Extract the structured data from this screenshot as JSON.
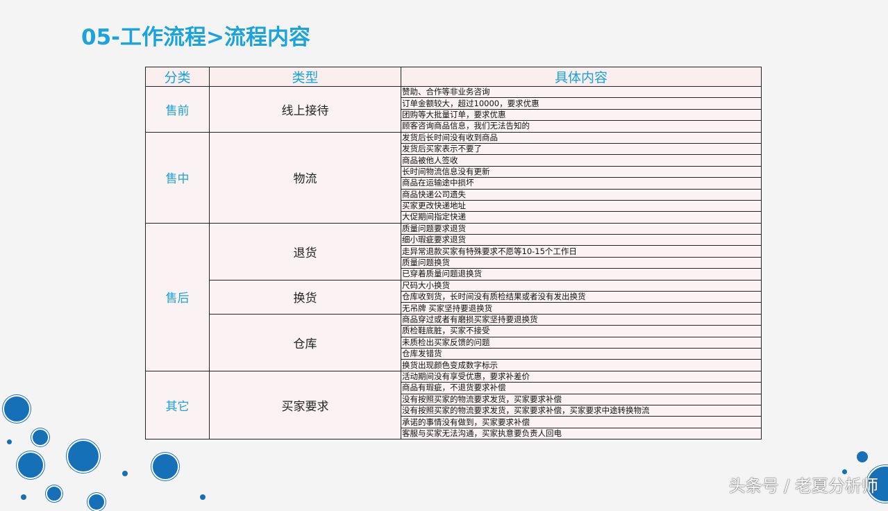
{
  "title": "05-工作流程>流程内容",
  "table": {
    "headers": [
      "分类",
      "类型",
      "具体内容"
    ],
    "groups": [
      {
        "category": "售前",
        "types": [
          {
            "type": "线上接待",
            "items": [
              "赞助、合作等非业务咨询",
              "订单金额较大，超过10000，要求优惠",
              "团购等大批量订单，要求优惠",
              "顾客咨询商品信息，我们无法告知的"
            ]
          }
        ]
      },
      {
        "category": "售中",
        "types": [
          {
            "type": "物流",
            "items": [
              "发货后长时间没有收到商品",
              "发货后买家表示不要了",
              "商品被他人签收",
              "长时间物流信息没有更新",
              "商品在运输途中损坏",
              "商品快递公司遗失",
              "买家更改快递地址",
              "大促期间指定快递"
            ]
          }
        ]
      },
      {
        "category": "售后",
        "types": [
          {
            "type": "退货",
            "items": [
              "质量问题要求退货",
              "细小瑕疵要求退货",
              "走异常退款买家有特殊要求不愿等10-15个工作日",
              "质量问题换货",
              "已穿着质量问题退换货"
            ]
          },
          {
            "type": "换货",
            "items": [
              "尺码大小换货",
              "仓库收到货，长时间没有质检结果或者没有发出换货",
              "无吊牌 买家坚持要退换货"
            ]
          },
          {
            "type": "仓库",
            "items": [
              "商品穿过或者有磨损买家坚持要退换货",
              "质检鞋底脏，买家不接受",
              "未质检出买家反馈的问题",
              "仓库发错货",
              "换货出现颜色变成数字标示"
            ]
          }
        ]
      },
      {
        "category": "其它",
        "types": [
          {
            "type": "买家要求",
            "items": [
              "活动期间没有享受优惠，要求补差价",
              "商品有瑕疵，不退货要求补偿",
              "没有按照买家的物流要求发货，买家要求补偿",
              "没有按照买家的物流要求发货，买家要求补偿，买家要求中途转换物流",
              "承诺的事情没有做到，买家要求补偿",
              "客服与买家无法沟通，买家执意要负责人回电"
            ]
          }
        ]
      }
    ]
  },
  "watermark": "头条号 / 老夏分析师",
  "colors": {
    "accent": "#1aa3dc",
    "circle": "#1570b8"
  }
}
